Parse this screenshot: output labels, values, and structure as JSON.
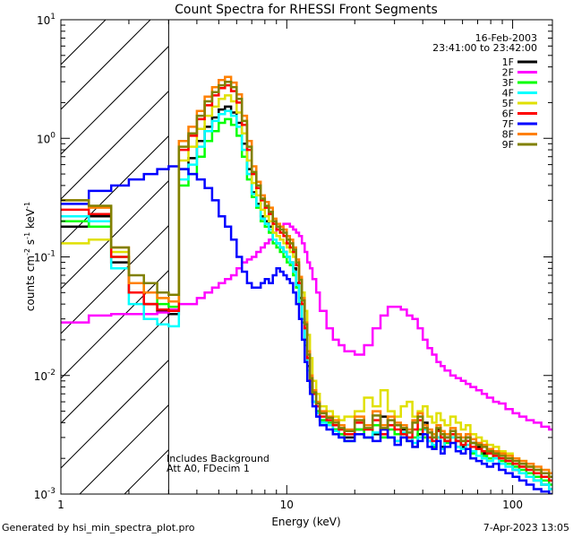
{
  "chart_data": {
    "type": "line",
    "title": "Count Spectra for RHESSI Front Segments",
    "xlabel": "Energy (keV)",
    "ylabel_base": "counts cm",
    "ylabel_sup1": "-2",
    "ylabel_mid": " s",
    "ylabel_sup2": "-1",
    "ylabel_end": " keV",
    "ylabel_sup3": "-1",
    "x_scale": "log",
    "y_scale": "log",
    "xlim": [
      1,
      150
    ],
    "ylim": [
      0.001,
      10
    ],
    "x_ticks": [
      {
        "value": 1,
        "label": "1"
      },
      {
        "value": 10,
        "label": "10"
      },
      {
        "value": 100,
        "label": "100"
      }
    ],
    "y_ticks": [
      {
        "value": 0.001,
        "base": "10",
        "exp": "-3"
      },
      {
        "value": 0.01,
        "base": "10",
        "exp": "-2"
      },
      {
        "value": 0.1,
        "base": "10",
        "exp": "-1"
      },
      {
        "value": 1,
        "base": "10",
        "exp": "0"
      },
      {
        "value": 10,
        "base": "10",
        "exp": "1"
      }
    ],
    "hatched_region_max_energy": 3,
    "date": "16-Feb-2003",
    "time_range": "23:41:00 to 23:42:00",
    "annotations": [
      "Includes Background",
      "Att A0, FDecim 1"
    ],
    "segments": [
      "1F",
      "2F",
      "3F",
      "4F",
      "5F",
      "6F",
      "7F",
      "8F",
      "9F"
    ],
    "energy_edges": [
      1,
      1.33,
      1.67,
      2,
      2.33,
      2.67,
      3,
      3.33,
      3.67,
      4,
      4.33,
      4.67,
      5,
      5.33,
      5.67,
      6,
      6.33,
      6.67,
      7,
      7.33,
      7.67,
      8,
      8.33,
      8.67,
      9,
      9.33,
      9.67,
      10,
      10.33,
      10.67,
      11,
      11.33,
      11.67,
      12,
      12.33,
      12.67,
      13,
      13.5,
      14,
      15,
      16,
      17,
      18,
      20,
      22,
      24,
      26,
      28,
      30,
      32,
      34,
      36,
      38,
      40,
      42,
      44,
      46,
      48,
      50,
      53,
      56,
      59,
      62,
      65,
      69,
      73,
      77,
      82,
      87,
      93,
      100,
      107,
      115,
      124,
      134,
      145,
      150
    ],
    "series": [
      {
        "name": "1F",
        "color": "#000000",
        "values": [
          0.18,
          0.22,
          0.09,
          0.05,
          0.04,
          0.035,
          0.033,
          0.55,
          0.68,
          0.95,
          1.25,
          1.5,
          1.75,
          1.85,
          1.65,
          1.35,
          0.9,
          0.55,
          0.35,
          0.28,
          0.22,
          0.2,
          0.18,
          0.14,
          0.13,
          0.12,
          0.11,
          0.1,
          0.09,
          0.08,
          0.06,
          0.045,
          0.03,
          0.02,
          0.012,
          0.008,
          0.006,
          0.005,
          0.0042,
          0.0038,
          0.0035,
          0.0032,
          0.003,
          0.0035,
          0.003,
          0.0032,
          0.0045,
          0.003,
          0.0028,
          0.0035,
          0.003,
          0.0025,
          0.0032,
          0.004,
          0.0028,
          0.003,
          0.0035,
          0.0025,
          0.003,
          0.0032,
          0.0028,
          0.0025,
          0.003,
          0.0027,
          0.0025,
          0.0022,
          0.002,
          0.0022,
          0.0018,
          0.0018,
          0.0016,
          0.0015,
          0.0014,
          0.0013,
          0.0012,
          0.0011
        ]
      },
      {
        "name": "2F",
        "color": "#ff00ff",
        "values": [
          0.028,
          0.032,
          0.033,
          0.033,
          0.033,
          0.034,
          0.036,
          0.04,
          0.04,
          0.045,
          0.05,
          0.055,
          0.06,
          0.065,
          0.07,
          0.08,
          0.09,
          0.095,
          0.1,
          0.11,
          0.12,
          0.13,
          0.14,
          0.16,
          0.17,
          0.18,
          0.19,
          0.19,
          0.18,
          0.17,
          0.16,
          0.15,
          0.13,
          0.11,
          0.09,
          0.08,
          0.065,
          0.05,
          0.035,
          0.025,
          0.02,
          0.018,
          0.016,
          0.015,
          0.018,
          0.025,
          0.032,
          0.038,
          0.038,
          0.036,
          0.032,
          0.03,
          0.025,
          0.02,
          0.017,
          0.015,
          0.013,
          0.012,
          0.011,
          0.01,
          0.0095,
          0.009,
          0.0085,
          0.008,
          0.0075,
          0.007,
          0.0065,
          0.006,
          0.0058,
          0.0052,
          0.0048,
          0.0045,
          0.0042,
          0.004,
          0.0037,
          0.0035
        ]
      },
      {
        "name": "3F",
        "color": "#00ff00",
        "values": [
          0.2,
          0.18,
          0.1,
          0.06,
          0.05,
          0.04,
          0.038,
          0.4,
          0.5,
          0.7,
          0.95,
          1.15,
          1.35,
          1.45,
          1.3,
          1.05,
          0.7,
          0.45,
          0.32,
          0.26,
          0.2,
          0.18,
          0.16,
          0.13,
          0.12,
          0.11,
          0.1,
          0.09,
          0.085,
          0.07,
          0.055,
          0.04,
          0.028,
          0.018,
          0.011,
          0.008,
          0.006,
          0.005,
          0.0042,
          0.004,
          0.0035,
          0.0032,
          0.0028,
          0.0035,
          0.003,
          0.0038,
          0.003,
          0.0035,
          0.0032,
          0.003,
          0.0028,
          0.003,
          0.0035,
          0.003,
          0.0028,
          0.0025,
          0.003,
          0.0032,
          0.0027,
          0.003,
          0.0025,
          0.0028,
          0.0024,
          0.0022,
          0.0026,
          0.0021,
          0.002,
          0.0022,
          0.0019,
          0.0018,
          0.0017,
          0.0016,
          0.0015,
          0.0014,
          0.0013,
          0.0012
        ]
      },
      {
        "name": "4F",
        "color": "#00ffff",
        "values": [
          0.22,
          0.2,
          0.08,
          0.04,
          0.03,
          0.027,
          0.026,
          0.45,
          0.6,
          0.85,
          1.15,
          1.4,
          1.6,
          1.7,
          1.55,
          1.25,
          0.8,
          0.5,
          0.34,
          0.27,
          0.21,
          0.19,
          0.17,
          0.14,
          0.13,
          0.12,
          0.11,
          0.1,
          0.09,
          0.075,
          0.058,
          0.042,
          0.03,
          0.019,
          0.011,
          0.008,
          0.006,
          0.0048,
          0.004,
          0.0038,
          0.0034,
          0.003,
          0.0028,
          0.0032,
          0.003,
          0.0033,
          0.0038,
          0.003,
          0.0028,
          0.0033,
          0.003,
          0.0027,
          0.003,
          0.0035,
          0.0028,
          0.0026,
          0.003,
          0.0024,
          0.0028,
          0.003,
          0.0025,
          0.0024,
          0.0026,
          0.0023,
          0.0021,
          0.002,
          0.0019,
          0.002,
          0.0018,
          0.0017,
          0.0016,
          0.0015,
          0.0014,
          0.0013,
          0.0012,
          0.0011
        ]
      },
      {
        "name": "5F",
        "color": "#e0e000",
        "values": [
          0.13,
          0.14,
          0.11,
          0.06,
          0.05,
          0.045,
          0.042,
          0.65,
          0.85,
          1.2,
          1.55,
          1.85,
          2.15,
          2.3,
          2.05,
          1.65,
          1.1,
          0.65,
          0.42,
          0.33,
          0.25,
          0.22,
          0.2,
          0.16,
          0.15,
          0.14,
          0.13,
          0.12,
          0.11,
          0.1,
          0.085,
          0.065,
          0.05,
          0.035,
          0.022,
          0.014,
          0.009,
          0.007,
          0.0055,
          0.005,
          0.0045,
          0.0042,
          0.0045,
          0.005,
          0.0065,
          0.0055,
          0.0075,
          0.005,
          0.0045,
          0.0055,
          0.006,
          0.0045,
          0.005,
          0.0055,
          0.0045,
          0.004,
          0.0048,
          0.0042,
          0.0038,
          0.0045,
          0.004,
          0.0035,
          0.0038,
          0.0032,
          0.003,
          0.0028,
          0.0026,
          0.0025,
          0.0023,
          0.0022,
          0.002,
          0.0019,
          0.0017,
          0.0016,
          0.0015,
          0.0014
        ]
      },
      {
        "name": "6F",
        "color": "#ff0000",
        "values": [
          0.25,
          0.23,
          0.1,
          0.05,
          0.04,
          0.036,
          0.035,
          0.8,
          1.05,
          1.45,
          1.9,
          2.3,
          2.65,
          2.8,
          2.5,
          2.0,
          1.3,
          0.8,
          0.5,
          0.38,
          0.3,
          0.26,
          0.23,
          0.19,
          0.17,
          0.16,
          0.15,
          0.13,
          0.12,
          0.11,
          0.085,
          0.06,
          0.04,
          0.025,
          0.014,
          0.009,
          0.007,
          0.0055,
          0.0045,
          0.0042,
          0.0038,
          0.0035,
          0.0032,
          0.004,
          0.0035,
          0.0042,
          0.0032,
          0.0038,
          0.0035,
          0.0032,
          0.003,
          0.0035,
          0.0042,
          0.0032,
          0.003,
          0.0028,
          0.0034,
          0.003,
          0.0028,
          0.0032,
          0.0028,
          0.0026,
          0.0028,
          0.0025,
          0.0024,
          0.0023,
          0.0022,
          0.0021,
          0.002,
          0.0019,
          0.0018,
          0.0017,
          0.0016,
          0.0015,
          0.0014,
          0.0013
        ]
      },
      {
        "name": "7F",
        "color": "#0000ff",
        "values": [
          0.28,
          0.36,
          0.4,
          0.45,
          0.5,
          0.55,
          0.58,
          0.55,
          0.5,
          0.45,
          0.38,
          0.3,
          0.22,
          0.18,
          0.14,
          0.1,
          0.075,
          0.06,
          0.055,
          0.055,
          0.06,
          0.065,
          0.06,
          0.07,
          0.08,
          0.075,
          0.07,
          0.065,
          0.06,
          0.05,
          0.04,
          0.03,
          0.02,
          0.013,
          0.009,
          0.007,
          0.0055,
          0.0045,
          0.0038,
          0.0035,
          0.0032,
          0.003,
          0.0028,
          0.0032,
          0.003,
          0.0028,
          0.0035,
          0.003,
          0.0026,
          0.003,
          0.0028,
          0.0025,
          0.0028,
          0.0032,
          0.0025,
          0.0024,
          0.0028,
          0.0022,
          0.0025,
          0.0027,
          0.0023,
          0.0022,
          0.0024,
          0.002,
          0.0019,
          0.0018,
          0.0017,
          0.0018,
          0.0016,
          0.0015,
          0.0014,
          0.0013,
          0.0012,
          0.0011,
          0.00105,
          0.001
        ]
      },
      {
        "name": "8F",
        "color": "#ff8000",
        "values": [
          0.3,
          0.26,
          0.12,
          0.06,
          0.05,
          0.045,
          0.042,
          0.95,
          1.25,
          1.7,
          2.25,
          2.7,
          3.1,
          3.3,
          2.95,
          2.35,
          1.55,
          0.95,
          0.58,
          0.43,
          0.33,
          0.29,
          0.26,
          0.21,
          0.19,
          0.18,
          0.17,
          0.15,
          0.14,
          0.12,
          0.095,
          0.068,
          0.045,
          0.028,
          0.016,
          0.01,
          0.0075,
          0.006,
          0.005,
          0.0045,
          0.0042,
          0.0038,
          0.0035,
          0.0045,
          0.0038,
          0.005,
          0.0038,
          0.0045,
          0.004,
          0.0038,
          0.0035,
          0.0042,
          0.0048,
          0.0038,
          0.0035,
          0.0032,
          0.0038,
          0.0034,
          0.0032,
          0.0036,
          0.0032,
          0.003,
          0.0032,
          0.0029,
          0.0027,
          0.0026,
          0.0024,
          0.0023,
          0.0022,
          0.0021,
          0.002,
          0.0019,
          0.0018,
          0.0017,
          0.0016,
          0.0015
        ]
      },
      {
        "name": "9F",
        "color": "#808000",
        "values": [
          0.3,
          0.27,
          0.12,
          0.07,
          0.06,
          0.05,
          0.048,
          0.85,
          1.1,
          1.55,
          2.05,
          2.45,
          2.8,
          3.0,
          2.7,
          2.15,
          1.4,
          0.85,
          0.52,
          0.4,
          0.31,
          0.27,
          0.24,
          0.2,
          0.18,
          0.17,
          0.16,
          0.14,
          0.13,
          0.115,
          0.09,
          0.064,
          0.043,
          0.027,
          0.015,
          0.0095,
          0.0072,
          0.0058,
          0.0048,
          0.0044,
          0.004,
          0.0036,
          0.0034,
          0.0042,
          0.0036,
          0.0046,
          0.0036,
          0.0042,
          0.0038,
          0.0036,
          0.0033,
          0.004,
          0.0045,
          0.0036,
          0.0033,
          0.003,
          0.0036,
          0.0032,
          0.003,
          0.0034,
          0.003,
          0.0028,
          0.003,
          0.0027,
          0.0026,
          0.0025,
          0.0023,
          0.0022,
          0.0021,
          0.002,
          0.0019,
          0.0018,
          0.0017,
          0.0016,
          0.0015,
          0.0014
        ]
      }
    ]
  },
  "footer": {
    "left": "Generated by hsi_min_spectra_plot.pro",
    "right": "7-Apr-2023 13:05"
  }
}
